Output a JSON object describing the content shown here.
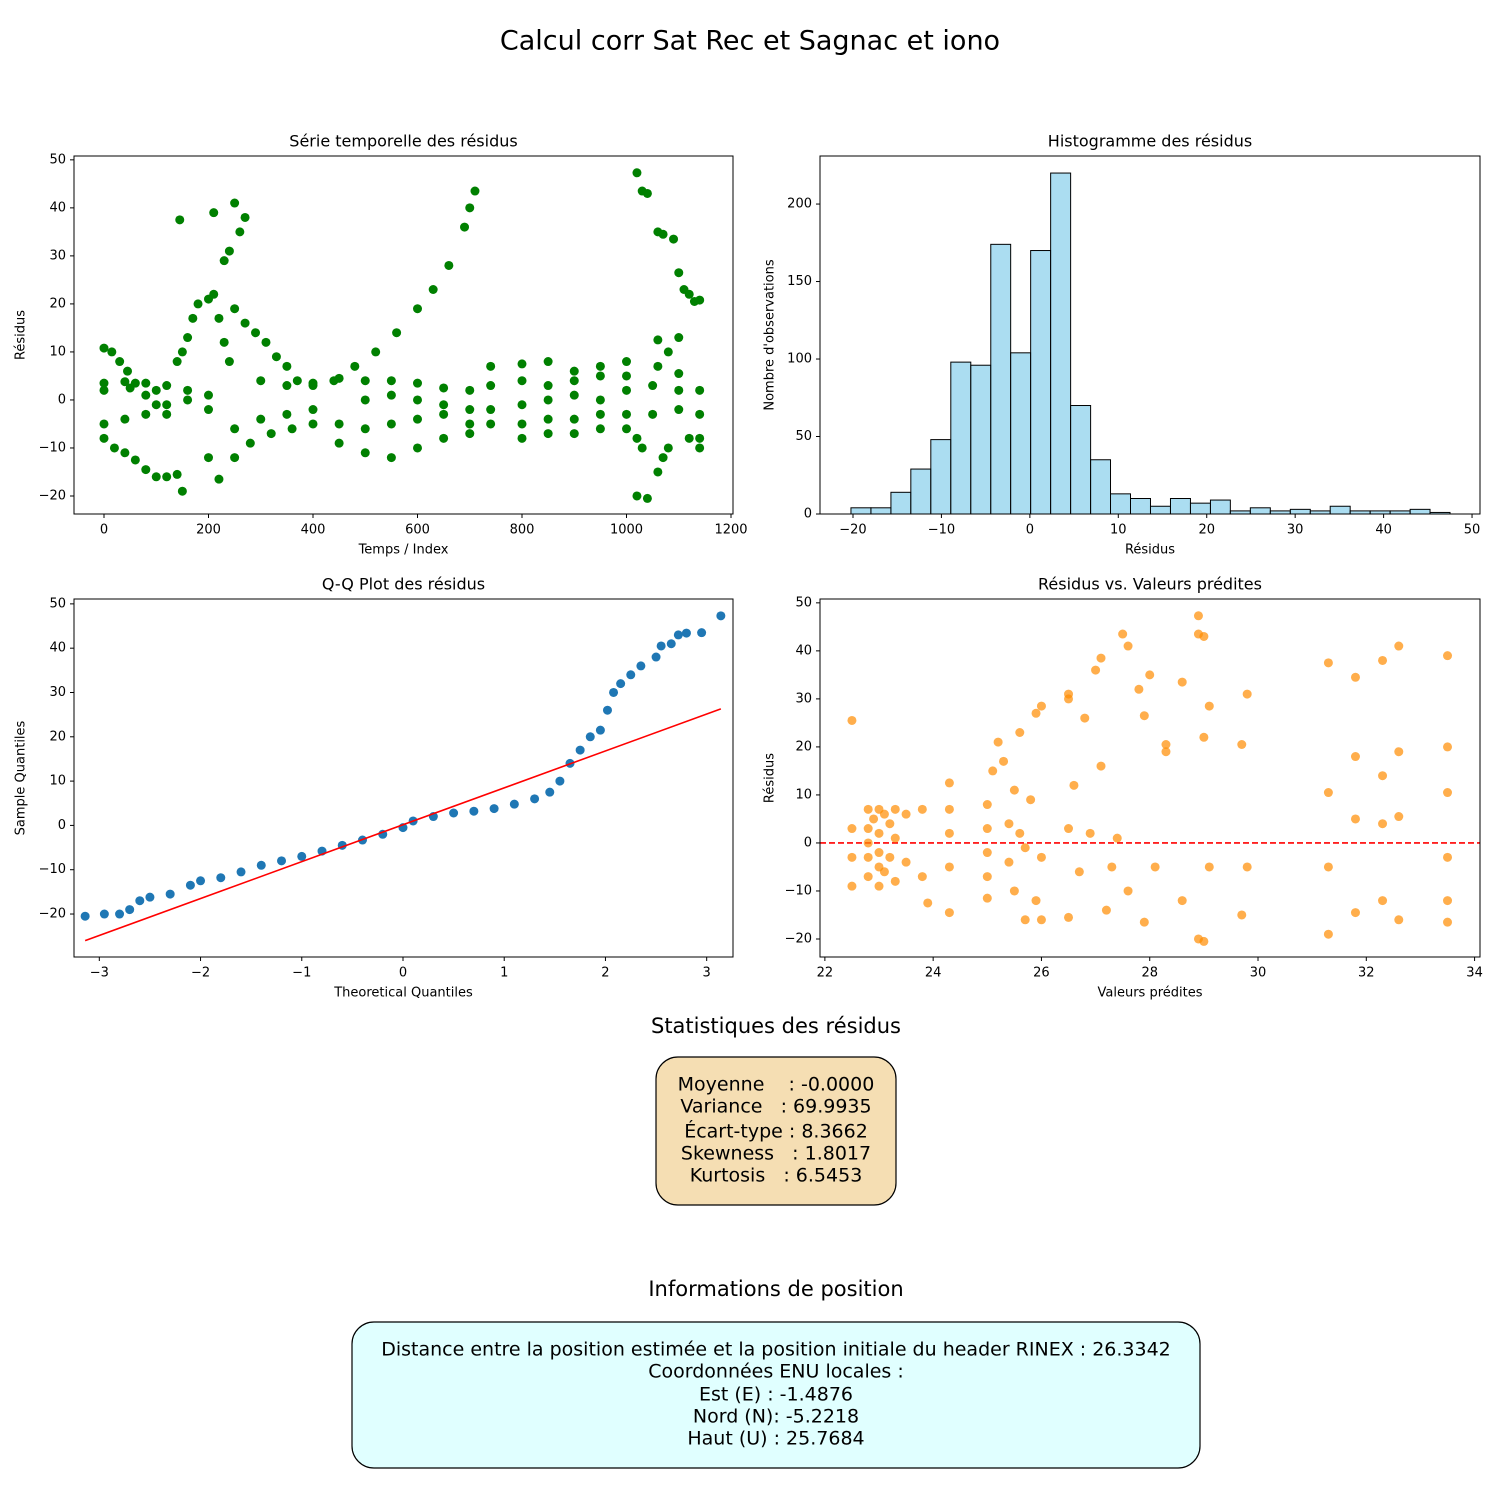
{
  "title": "Calcul corr Sat Rec et Sagnac et iono",
  "chart_data": [
    {
      "type": "scatter",
      "title": "Série temporelle des résidus",
      "xlabel": "Temps / Index",
      "ylabel": "Résidus",
      "color": "green",
      "alpha": 1,
      "x": [
        0,
        15,
        30,
        45,
        60,
        80,
        100,
        120,
        0,
        20,
        40,
        60,
        80,
        100,
        120,
        140,
        150,
        0,
        40,
        80,
        120,
        160,
        200,
        0,
        40,
        80,
        120,
        160,
        200,
        0,
        50,
        100,
        140,
        150,
        160,
        170,
        180,
        200,
        210,
        220,
        230,
        240,
        145,
        210,
        230,
        240,
        250,
        260,
        270,
        220,
        200,
        250,
        270,
        290,
        310,
        330,
        350,
        370,
        250,
        280,
        320,
        360,
        400,
        250,
        300,
        350,
        400,
        300,
        350,
        400,
        400,
        440,
        480,
        520,
        560,
        600,
        630,
        660,
        690,
        700,
        710,
        450,
        500,
        550,
        600,
        650,
        700,
        450,
        500,
        550,
        600,
        650,
        700,
        450,
        500,
        550,
        600,
        650,
        700,
        500,
        550,
        600,
        650,
        700,
        740,
        800,
        850,
        900,
        950,
        1000,
        740,
        800,
        850,
        900,
        950,
        1000,
        740,
        800,
        850,
        900,
        950,
        1000,
        740,
        800,
        850,
        900,
        950,
        1000,
        800,
        850,
        900,
        950,
        1000,
        1020,
        1030,
        1040,
        1060,
        1070,
        1090,
        1100,
        1110,
        1120,
        1130,
        1140,
        1100,
        1080,
        1060,
        1020,
        1040,
        1060,
        1070,
        1060,
        1030,
        1080,
        1120,
        1140,
        1050,
        1100,
        1140,
        1050,
        1100,
        1140,
        1100,
        1140,
        1020
      ],
      "values": [
        10.8,
        10,
        8,
        6,
        3.5,
        1,
        -1,
        -3,
        -8,
        -10,
        -11,
        -12.5,
        -14.5,
        -16,
        -16,
        -15.5,
        -19,
        3.5,
        3.8,
        3.5,
        3,
        2,
        1,
        -5,
        -4,
        -3,
        -1,
        0,
        -2,
        2,
        2.5,
        2,
        8,
        10,
        13,
        17,
        20,
        21,
        22,
        17,
        12,
        8,
        37.5,
        39,
        29,
        31,
        41,
        35,
        38,
        -16.5,
        -12,
        19,
        16,
        14,
        12,
        9,
        7,
        4,
        -12,
        -9,
        -7,
        -6,
        -5,
        -6,
        -4,
        -3,
        -2,
        4,
        3,
        3.5,
        3,
        4,
        7,
        10,
        14,
        19,
        23,
        28,
        36,
        40,
        43.5,
        -9,
        -11,
        -12,
        -10,
        -8,
        -7,
        4.5,
        4,
        4,
        3.5,
        2.5,
        2,
        -5,
        -6,
        -5,
        -4,
        -3,
        -2,
        0,
        1,
        0,
        -1,
        -5,
        7,
        7.5,
        8,
        6,
        7,
        8,
        3,
        4,
        3,
        4,
        5,
        5,
        -2,
        -1,
        0,
        1,
        0,
        2,
        -5,
        -5,
        -4,
        -4,
        -3,
        -3,
        -8,
        -7,
        -7,
        -6,
        -6,
        47.3,
        43.5,
        43,
        35,
        34.5,
        33.5,
        26.5,
        23,
        22,
        20.5,
        20.8,
        13,
        10,
        7,
        -20,
        -20.5,
        -15,
        -12,
        12.5,
        -10,
        -10,
        -8,
        -10,
        3,
        2,
        2,
        -3,
        -2,
        -3,
        5.5,
        -8,
        -8
      ],
      "xlim": [
        -57.4,
        1203.8
      ],
      "ylim": [
        -23.75,
        50.8
      ],
      "xticks": [
        0,
        200,
        400,
        600,
        800,
        1000,
        1200
      ],
      "yticks": [
        {
          "value": -20,
          "label": "−20"
        },
        {
          "value": -10,
          "label": "−10"
        },
        0,
        10,
        20,
        30,
        40,
        50
      ]
    },
    {
      "type": "histogram",
      "title": "Histogramme des résidus",
      "xlabel": "Résidus",
      "ylabel": "Nombre d'observations",
      "color": "skyblue",
      "edgecolor": "black",
      "alpha": 0.7,
      "bins": [
        -20.23,
        -17.97,
        -15.71,
        -13.46,
        -11.2,
        -8.94,
        -6.68,
        -4.42,
        -2.17,
        0.09,
        2.35,
        4.61,
        6.87,
        9.12,
        11.38,
        13.64,
        15.9,
        18.16,
        20.42,
        22.67,
        24.93,
        27.19,
        29.45,
        31.71,
        33.96,
        36.22,
        38.48,
        40.74,
        43.0,
        45.25,
        47.51
      ],
      "values": [
        4,
        4,
        14,
        29,
        48,
        98,
        96,
        174,
        104,
        170,
        220,
        70,
        35,
        13,
        10,
        5,
        10,
        7,
        9,
        2,
        4,
        2,
        3,
        2,
        5,
        2,
        2,
        2,
        3,
        1
      ],
      "xlim": [
        -23.73,
        50.9
      ],
      "ylim": [
        0,
        231
      ],
      "xticks": [
        {
          "value": -20,
          "label": "−20"
        },
        {
          "value": -10,
          "label": "−10"
        },
        0,
        10,
        20,
        30,
        40,
        50
      ],
      "yticks": [
        0,
        50,
        100,
        150,
        200
      ]
    },
    {
      "type": "qq",
      "title": "Q-Q Plot des résidus",
      "xlabel": "Theoretical Quantiles",
      "ylabel": "Sample Quantiles",
      "color": "#1f77b4",
      "x": [
        -3.14,
        -2.95,
        -2.8,
        -2.7,
        -2.6,
        -2.5,
        -2.3,
        -2.1,
        -2,
        -1.8,
        -1.6,
        -1.4,
        -1.2,
        -1,
        -0.8,
        -0.6,
        -0.4,
        -0.2,
        0,
        0.1,
        0.3,
        0.5,
        0.7,
        0.9,
        1.1,
        1.3,
        1.45,
        1.55,
        1.65,
        1.75,
        1.85,
        1.95,
        2.02,
        2.08,
        2.15,
        2.25,
        2.35,
        2.5,
        2.55,
        2.65,
        2.72,
        2.8,
        2.95,
        3.14
      ],
      "values": [
        -20.5,
        -20,
        -20,
        -19,
        -17,
        -16.2,
        -15.5,
        -13.5,
        -12.5,
        -11.8,
        -10.5,
        -9,
        -8,
        -7,
        -5.8,
        -4.5,
        -3.3,
        -2,
        -0.5,
        1,
        2,
        2.8,
        3.2,
        3.8,
        4.8,
        6,
        7.5,
        10,
        14,
        17,
        20,
        21.5,
        26,
        30,
        32,
        34,
        36,
        38,
        40.5,
        41,
        43,
        43.4,
        43.5,
        47.3
      ],
      "line": {
        "x": [
          -3.14,
          3.14
        ],
        "values": [
          -26,
          26.3
        ],
        "color": "red"
      },
      "xlim": [
        -3.25,
        3.26
      ],
      "ylim": [
        -29.7,
        51.1
      ],
      "xticks": [
        {
          "value": -3,
          "label": "−3"
        },
        {
          "value": -2,
          "label": "−2"
        },
        {
          "value": -1,
          "label": "−1"
        },
        0,
        1,
        2,
        3
      ],
      "yticks": [
        {
          "value": -20,
          "label": "−20"
        },
        {
          "value": -10,
          "label": "−10"
        },
        0,
        10,
        20,
        30,
        40,
        50
      ]
    },
    {
      "type": "scatter",
      "title": "Résidus vs. Valeurs prédites",
      "xlabel": "Valeurs prédites",
      "ylabel": "Résidus",
      "color": "darkorange",
      "alpha": 0.7,
      "x": [
        22.5,
        22.5,
        22.5,
        22.5,
        22.8,
        22.8,
        22.8,
        22.8,
        22.8,
        22.9,
        23,
        23,
        23,
        23,
        23,
        23.1,
        23.1,
        23.2,
        23.2,
        23.3,
        23.3,
        23.3,
        23.5,
        23.5,
        23.8,
        23.8,
        23.9,
        24.3,
        24.3,
        24.3,
        24.3,
        24.3,
        25,
        25,
        25,
        25,
        25,
        25.1,
        25.2,
        25.3,
        25.4,
        25.4,
        25.5,
        25.5,
        25.6,
        25.6,
        25.7,
        25.7,
        25.8,
        25.9,
        25.9,
        26,
        26,
        26,
        26.5,
        26.5,
        26.5,
        26.5,
        26.6,
        26.7,
        26.8,
        26.9,
        27,
        27.1,
        27.1,
        27.2,
        27.3,
        27.4,
        27.5,
        27.6,
        27.6,
        27.8,
        27.9,
        27.9,
        28,
        28.1,
        28.3,
        28.3,
        28.6,
        28.6,
        28.9,
        28.9,
        28.9,
        29,
        29,
        29,
        29.1,
        29.1,
        29.7,
        29.7,
        29.8,
        29.8,
        31.3,
        31.3,
        31.3,
        31.3,
        31.8,
        31.8,
        31.8,
        31.8,
        32.3,
        32.3,
        32.3,
        32.3,
        32.6,
        32.6,
        32.6,
        32.6,
        33.5,
        33.5,
        33.5,
        33.5,
        33.5,
        33.5
      ],
      "values": [
        25.5,
        3,
        -3,
        -9,
        7,
        3,
        0,
        -3,
        -7,
        5,
        7,
        2,
        -2,
        -5,
        -9,
        6,
        -6,
        4,
        -3,
        7,
        1,
        -8,
        6,
        -4,
        7,
        -7,
        -12.5,
        12.5,
        7,
        2,
        -5,
        -14.5,
        8,
        3,
        -2,
        -7,
        -11.5,
        15,
        21,
        17,
        4,
        -4,
        11,
        -10,
        23,
        2,
        -1,
        -16,
        9,
        27,
        -12,
        28.5,
        -3,
        -16,
        31,
        30,
        3,
        -15.5,
        12,
        -6,
        26,
        2,
        36,
        38.5,
        16,
        -14,
        -5,
        1,
        43.5,
        41,
        -10,
        32,
        26.5,
        -16.5,
        35,
        -5,
        19,
        20.5,
        33.5,
        -12,
        47.3,
        43.5,
        -20,
        43,
        22,
        -20.5,
        28.5,
        -5,
        20.5,
        -15,
        31,
        -5,
        37.5,
        10.5,
        -5,
        -19,
        34.5,
        18,
        5,
        -14.5,
        38,
        14,
        4,
        -12,
        41,
        19,
        5.5,
        -16,
        39,
        20,
        10.5,
        -3,
        -12,
        -16.5
      ],
      "hline": {
        "value": 0,
        "color": "red"
      },
      "xlim": [
        21.91,
        34.1
      ],
      "ylim": [
        -23.75,
        50.8
      ],
      "xticks": [
        22,
        24,
        26,
        28,
        30,
        32,
        34
      ],
      "yticks": [
        {
          "value": -20,
          "label": "−20"
        },
        {
          "value": -10,
          "label": "−10"
        },
        0,
        10,
        20,
        30,
        40,
        50
      ]
    }
  ],
  "stats": {
    "title": "Statistiques des résidus",
    "lines": [
      "Moyenne    : -0.0000",
      "Variance   : 69.9935",
      "Écart-type : 8.3662",
      "Skewness   : 1.8017",
      "Kurtosis   : 6.5453"
    ]
  },
  "position": {
    "title": "Informations de position",
    "lines": [
      "Distance entre la position estimée et la position initiale du header RINEX : 26.3342",
      "Coordonnées ENU locales :",
      "Est (E) : -1.4876",
      "Nord (N): -5.2218",
      "Haut (U) : 25.7684"
    ]
  }
}
